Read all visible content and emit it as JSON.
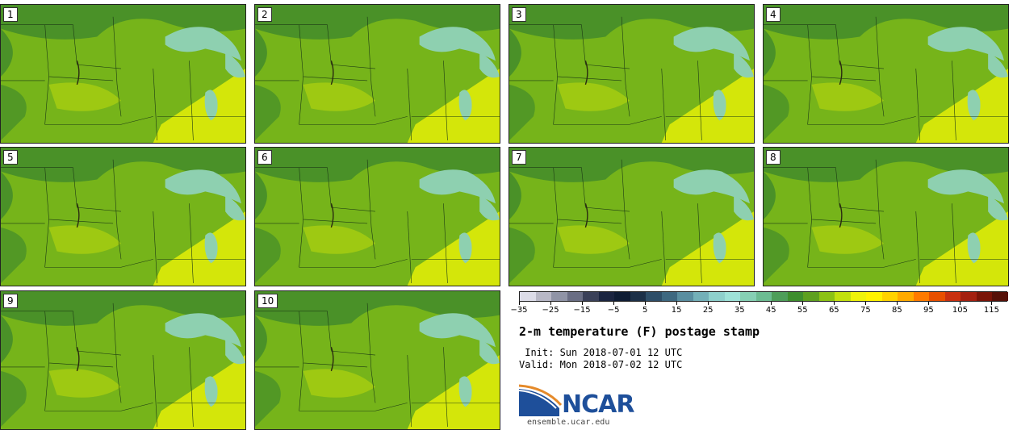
{
  "panels": [
    {
      "label": "1"
    },
    {
      "label": "2"
    },
    {
      "label": "3"
    },
    {
      "label": "4"
    },
    {
      "label": "5"
    },
    {
      "label": "6"
    },
    {
      "label": "7"
    },
    {
      "label": "8"
    },
    {
      "label": "9"
    },
    {
      "label": "10"
    }
  ],
  "colorbar": {
    "ticks": [
      "−35",
      "−25",
      "−15",
      "−5",
      "5",
      "15",
      "25",
      "35",
      "45",
      "55",
      "65",
      "75",
      "85",
      "95",
      "105",
      "115"
    ],
    "colors": [
      "#dcdce8",
      "#b8b8c6",
      "#9094a6",
      "#6a6e84",
      "#3a4058",
      "#1a2440",
      "#0e1c34",
      "#1c3048",
      "#2e4e68",
      "#3e6880",
      "#5a8ea0",
      "#74b0b8",
      "#8ed0cc",
      "#9ee2d8",
      "#86d0b4",
      "#6cbc92",
      "#4e9e5a",
      "#3e8e2e",
      "#5ea020",
      "#8cc214",
      "#c2e00e",
      "#eef20a",
      "#fff200",
      "#ffd200",
      "#ffaa00",
      "#ff7a00",
      "#e85000",
      "#c83010",
      "#a42010",
      "#7a1408",
      "#561008"
    ]
  },
  "info": {
    "title": "2-m temperature (F) postage stamp",
    "init": " Init: Sun 2018-07-01 12 UTC",
    "valid": "Valid: Mon 2018-07-02 12 UTC"
  },
  "logo": {
    "name": "NCAR",
    "url": "ensemble.ucar.edu"
  },
  "colors": {
    "land_dark": "#4a9128",
    "land_mid": "#76b41a",
    "land_light": "#a6cc12",
    "land_warm": "#d4e60a",
    "lake": "#8ed0b0"
  }
}
